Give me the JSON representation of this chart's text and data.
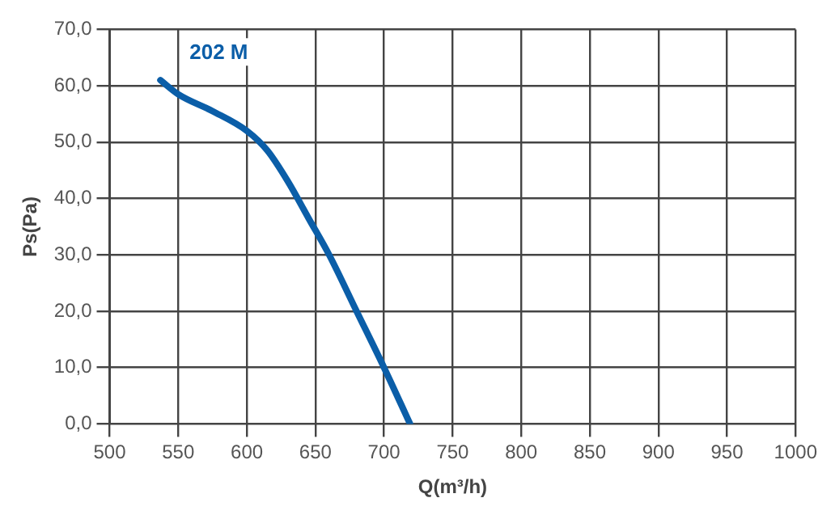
{
  "chart_data": {
    "type": "line",
    "xlabel": "Q(m³/h)",
    "ylabel": "Ps(Pa)",
    "xlim": [
      500,
      1000
    ],
    "ylim": [
      0,
      70
    ],
    "xticks": [
      500,
      550,
      600,
      650,
      700,
      750,
      800,
      850,
      900,
      950,
      1000
    ],
    "yticks": [
      {
        "value": 0,
        "label": "0,0"
      },
      {
        "value": 10,
        "label": "10,0"
      },
      {
        "value": 20,
        "label": "20,0"
      },
      {
        "value": 30,
        "label": "30,0"
      },
      {
        "value": 40,
        "label": "40,0"
      },
      {
        "value": 50,
        "label": "50,0"
      },
      {
        "value": 60,
        "label": "60,0"
      },
      {
        "value": 70,
        "label": "70,0"
      }
    ],
    "grid": true,
    "legend": false,
    "marker": "none",
    "line_style": "solid",
    "series": [
      {
        "name": "202 M",
        "color": "#0b5ea8",
        "x": [
          537,
          550,
          575,
          600,
          615,
          630,
          645,
          660,
          680,
          700,
          719
        ],
        "values": [
          61,
          58.5,
          55.5,
          52,
          48.5,
          43,
          36.5,
          30,
          20,
          10,
          0
        ]
      }
    ]
  }
}
